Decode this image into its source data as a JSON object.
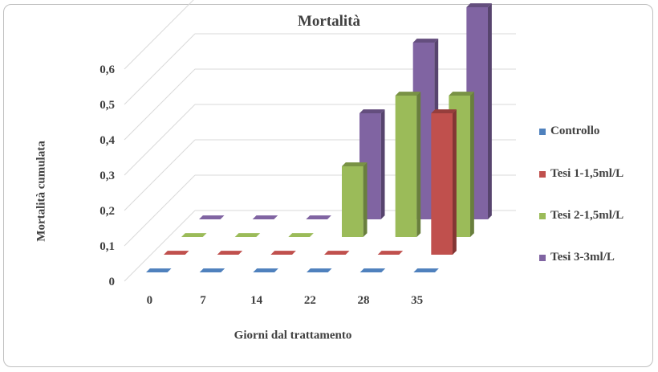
{
  "chart_data": {
    "type": "bar",
    "title": "Mortalità",
    "xlabel": "Giorni dal trattamento",
    "ylabel": "Mortalità cumulata",
    "categories": [
      "0",
      "7",
      "14",
      "22",
      "28",
      "35"
    ],
    "yticks": [
      "0",
      "0,1",
      "0,2",
      "0,3",
      "0,4",
      "0,5",
      "0,6"
    ],
    "ylim": [
      0,
      0.6
    ],
    "grid": true,
    "three_d": true,
    "legend_position": "right",
    "series": [
      {
        "name": "Controllo",
        "color": "#4f81bd",
        "values": [
          0,
          0,
          0,
          0,
          0,
          0
        ]
      },
      {
        "name": "Tesi 1-1,5ml/L",
        "color": "#c0504d",
        "values": [
          0,
          0,
          0,
          0,
          0,
          0.4
        ]
      },
      {
        "name": "Tesi 2-1,5ml/L",
        "color": "#9bbb59",
        "values": [
          0,
          0,
          0,
          0.2,
          0.4,
          0.4
        ]
      },
      {
        "name": "Tesi 3-3ml/L",
        "color": "#8064a2",
        "values": [
          0,
          0,
          0,
          0.3,
          0.5,
          0.6
        ]
      }
    ]
  }
}
